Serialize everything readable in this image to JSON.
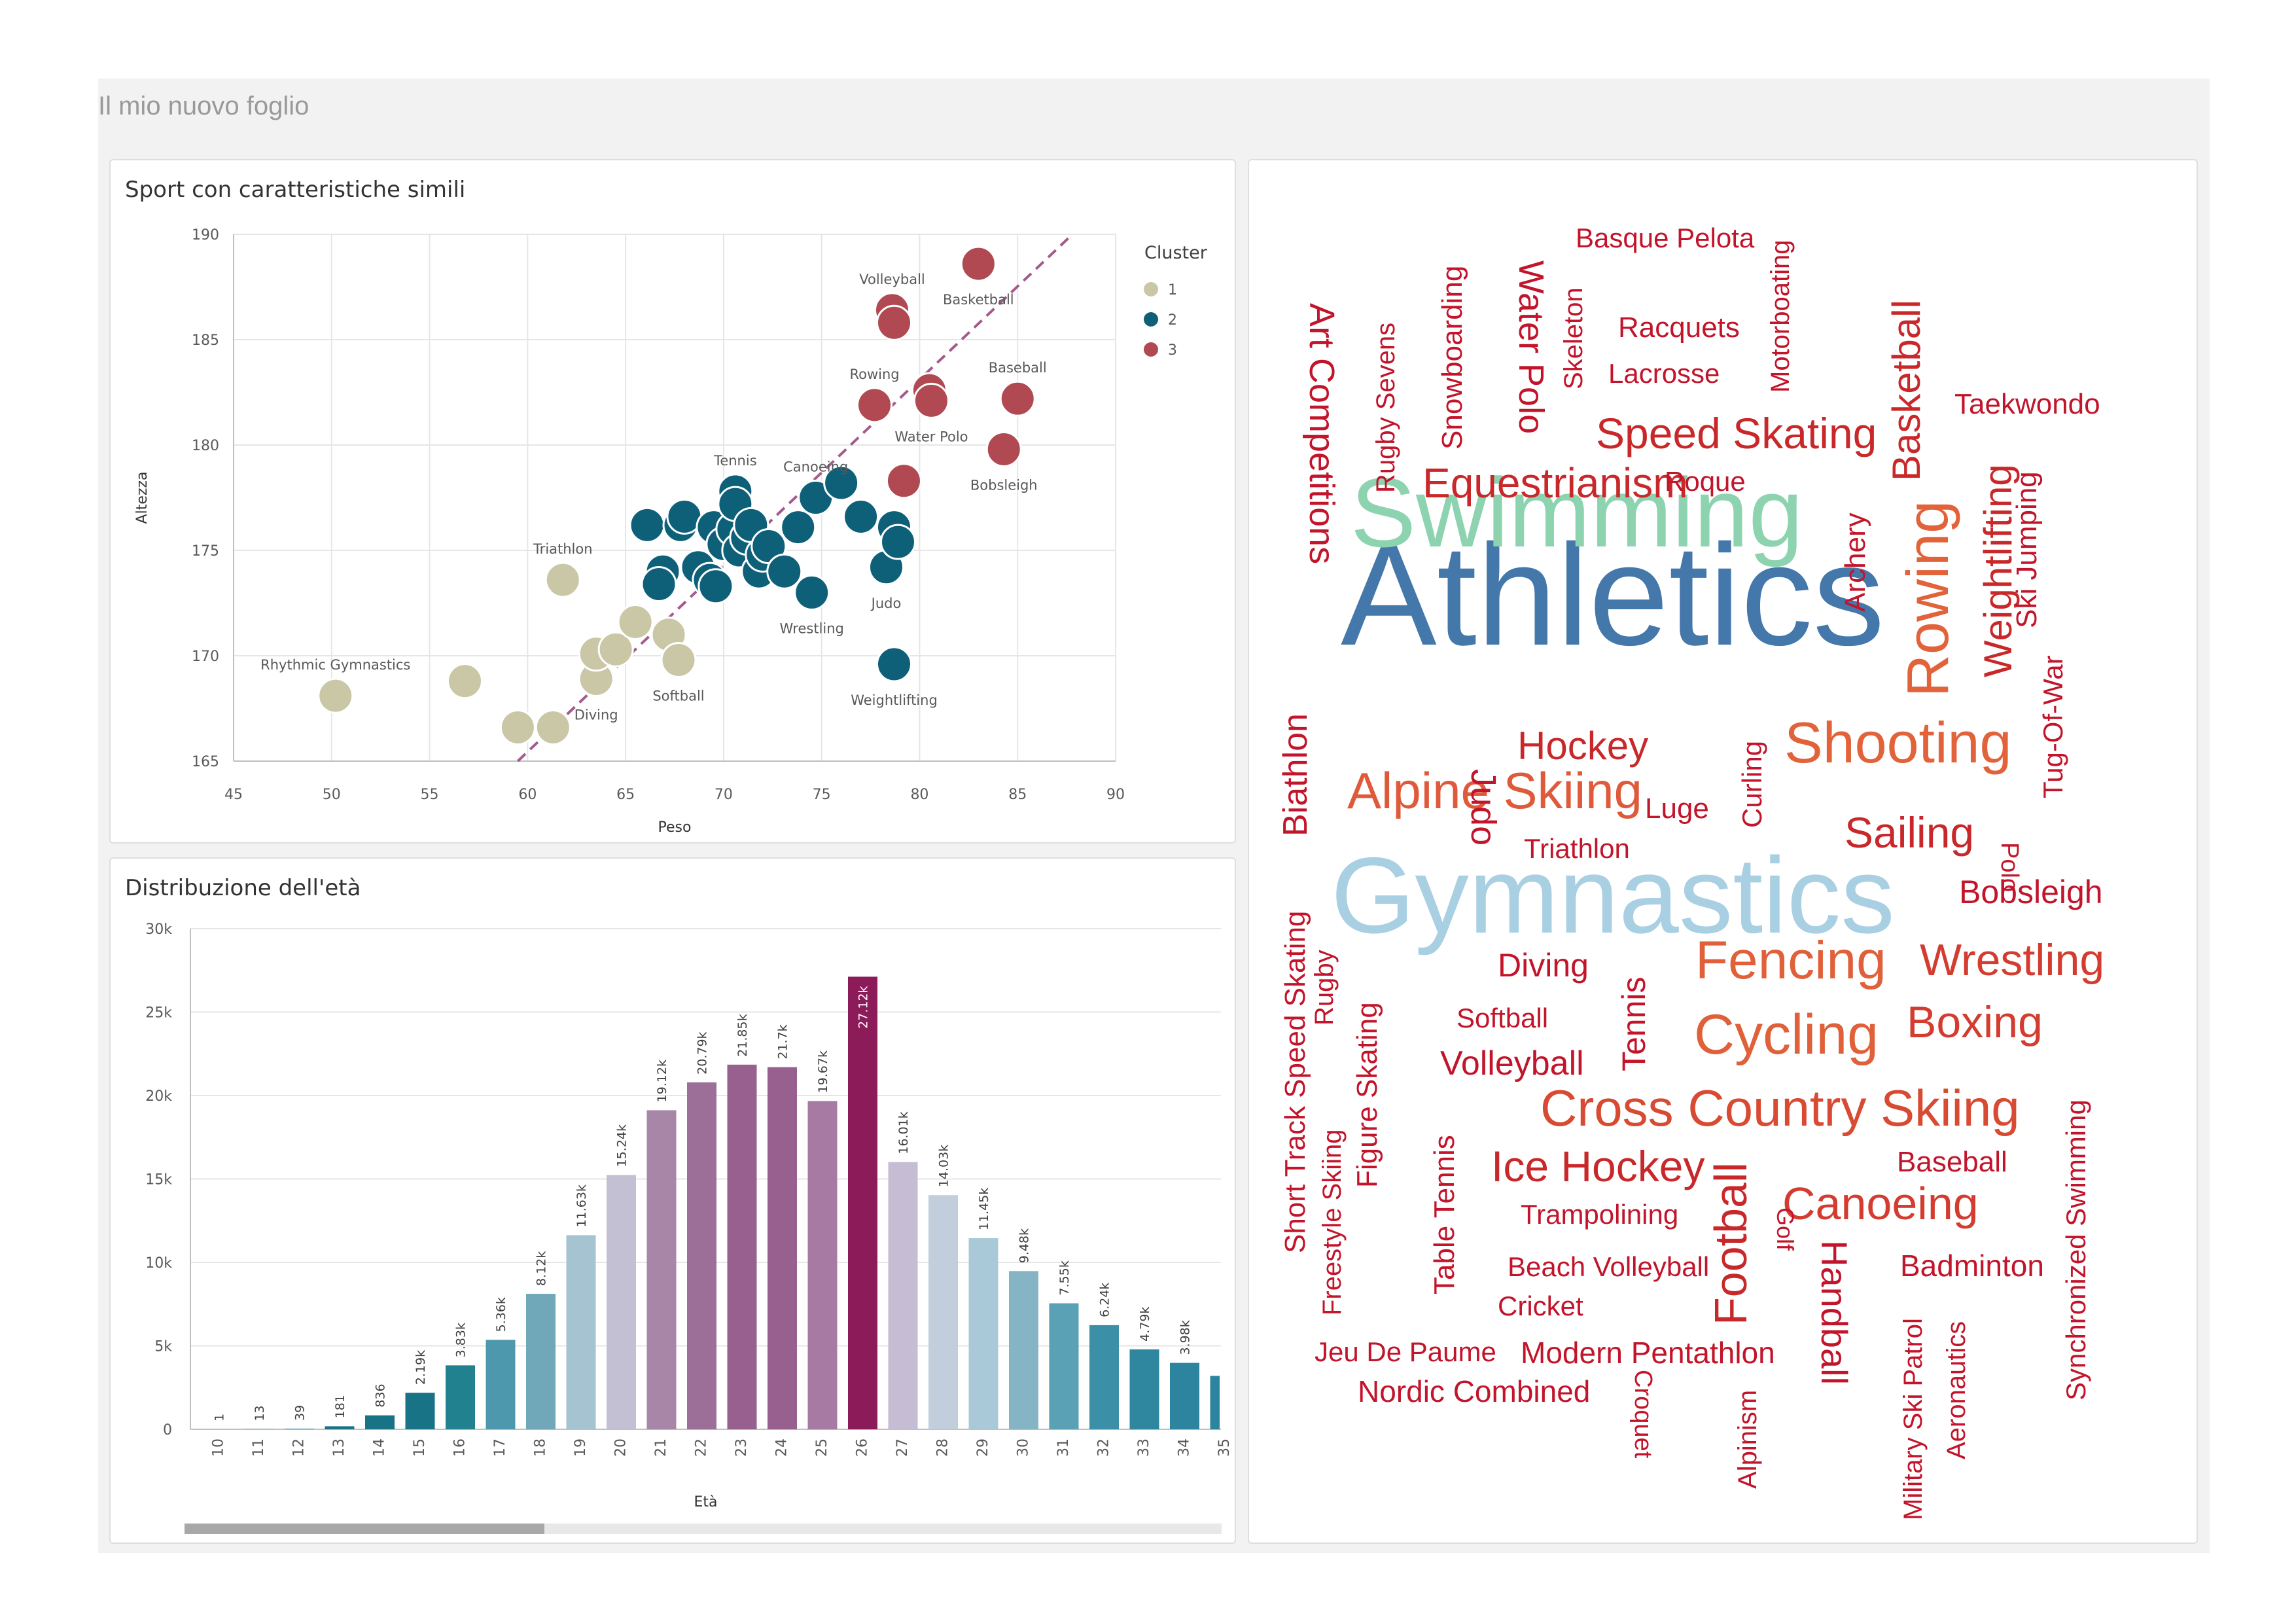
{
  "sheet": {
    "title": "Il mio nuovo foglio"
  },
  "scatter": {
    "title": "Sport con caratteristiche simili",
    "legend": {
      "title": "Cluster",
      "items": [
        {
          "label": "1",
          "color": "#c9c7a6"
        },
        {
          "label": "2",
          "color": "#0e6079"
        },
        {
          "label": "3",
          "color": "#b04951"
        }
      ]
    }
  },
  "bars": {
    "title": "Distribuzione dell'età"
  },
  "chart_data": [
    {
      "type": "scatter",
      "title": "Sport con caratteristiche simili",
      "xlabel": "Peso",
      "ylabel": "Altezza",
      "xlim": [
        45,
        90
      ],
      "ylim": [
        165,
        190
      ],
      "xticks": [
        45,
        50,
        55,
        60,
        65,
        70,
        75,
        80,
        85,
        90
      ],
      "yticks": [
        165,
        170,
        175,
        180,
        185,
        190
      ],
      "grid": true,
      "legend_position": "right",
      "trendline": {
        "from": [
          59.5,
          165
        ],
        "to": [
          87.8,
          190
        ],
        "color": "#a45a8c"
      },
      "points": [
        {
          "x": 50.2,
          "y": 168.1,
          "cluster": 1,
          "label": "Rhythmic Gymnastics"
        },
        {
          "x": 56.8,
          "y": 168.8,
          "cluster": 1
        },
        {
          "x": 59.5,
          "y": 166.6,
          "cluster": 1
        },
        {
          "x": 61.3,
          "y": 166.6,
          "cluster": 1
        },
        {
          "x": 63.5,
          "y": 168.9,
          "cluster": 1,
          "label": "Diving"
        },
        {
          "x": 63.5,
          "y": 170.1,
          "cluster": 1
        },
        {
          "x": 64.5,
          "y": 170.3,
          "cluster": 1
        },
        {
          "x": 65.5,
          "y": 171.6,
          "cluster": 1
        },
        {
          "x": 67.2,
          "y": 171.0,
          "cluster": 1
        },
        {
          "x": 67.7,
          "y": 169.8,
          "cluster": 1,
          "label": "Softball"
        },
        {
          "x": 61.8,
          "y": 173.6,
          "cluster": 1,
          "label": "Triathlon"
        },
        {
          "x": 66.1,
          "y": 176.2,
          "cluster": 2
        },
        {
          "x": 66.9,
          "y": 174.0,
          "cluster": 2
        },
        {
          "x": 66.7,
          "y": 173.4,
          "cluster": 2
        },
        {
          "x": 67.8,
          "y": 176.2,
          "cluster": 2
        },
        {
          "x": 68.0,
          "y": 176.6,
          "cluster": 2
        },
        {
          "x": 68.7,
          "y": 174.2,
          "cluster": 2
        },
        {
          "x": 69.3,
          "y": 173.6,
          "cluster": 2
        },
        {
          "x": 69.6,
          "y": 173.3,
          "cluster": 2
        },
        {
          "x": 69.5,
          "y": 176.1,
          "cluster": 2
        },
        {
          "x": 70.0,
          "y": 175.3,
          "cluster": 2
        },
        {
          "x": 70.5,
          "y": 176.0,
          "cluster": 2
        },
        {
          "x": 70.6,
          "y": 177.8,
          "cluster": 2,
          "label": "Tennis"
        },
        {
          "x": 70.6,
          "y": 177.2,
          "cluster": 2
        },
        {
          "x": 70.8,
          "y": 175.0,
          "cluster": 2
        },
        {
          "x": 71.2,
          "y": 175.6,
          "cluster": 2
        },
        {
          "x": 71.4,
          "y": 176.2,
          "cluster": 2
        },
        {
          "x": 71.8,
          "y": 174.0,
          "cluster": 2
        },
        {
          "x": 72.0,
          "y": 174.8,
          "cluster": 2
        },
        {
          "x": 72.3,
          "y": 175.2,
          "cluster": 2
        },
        {
          "x": 73.1,
          "y": 174.0,
          "cluster": 2
        },
        {
          "x": 73.8,
          "y": 176.1,
          "cluster": 2
        },
        {
          "x": 74.7,
          "y": 177.5,
          "cluster": 2,
          "label": "Canoeing"
        },
        {
          "x": 74.5,
          "y": 173.0,
          "cluster": 2,
          "label": "Wrestling"
        },
        {
          "x": 76.0,
          "y": 178.2,
          "cluster": 2
        },
        {
          "x": 77.0,
          "y": 176.6,
          "cluster": 2
        },
        {
          "x": 78.3,
          "y": 174.2,
          "cluster": 2,
          "label": "Judo"
        },
        {
          "x": 78.7,
          "y": 176.1,
          "cluster": 2
        },
        {
          "x": 78.9,
          "y": 175.4,
          "cluster": 2
        },
        {
          "x": 78.7,
          "y": 169.6,
          "cluster": 2,
          "label": "Weightlifting"
        },
        {
          "x": 78.6,
          "y": 186.4,
          "cluster": 3,
          "label": "Volleyball"
        },
        {
          "x": 78.7,
          "y": 185.8,
          "cluster": 3
        },
        {
          "x": 83.0,
          "y": 188.6,
          "cluster": 3,
          "label": "Basketball"
        },
        {
          "x": 77.7,
          "y": 181.9,
          "cluster": 3,
          "label": "Rowing"
        },
        {
          "x": 80.5,
          "y": 182.6,
          "cluster": 3
        },
        {
          "x": 80.6,
          "y": 182.1,
          "cluster": 3,
          "label": "Water Polo"
        },
        {
          "x": 85.0,
          "y": 182.2,
          "cluster": 3,
          "label": "Baseball"
        },
        {
          "x": 84.3,
          "y": 179.8,
          "cluster": 3,
          "label": "Bobsleigh"
        },
        {
          "x": 79.2,
          "y": 178.3,
          "cluster": 3
        }
      ]
    },
    {
      "type": "bar",
      "title": "Distribuzione dell'età",
      "xlabel": "Età",
      "ylabel": "",
      "ylim": [
        0,
        30000
      ],
      "yticks": [
        0,
        5000,
        10000,
        15000,
        20000,
        25000,
        30000
      ],
      "ytick_labels": [
        "0",
        "5k",
        "10k",
        "15k",
        "20k",
        "25k",
        "30k"
      ],
      "grid": true,
      "categories": [
        "10",
        "11",
        "12",
        "13",
        "14",
        "15",
        "16",
        "17",
        "18",
        "19",
        "20",
        "21",
        "22",
        "23",
        "24",
        "25",
        "26",
        "27",
        "28",
        "29",
        "30",
        "31",
        "32",
        "33",
        "34",
        "35"
      ],
      "values": [
        1,
        13,
        39,
        181,
        836,
        2190,
        3830,
        5360,
        8120,
        11630,
        15240,
        19120,
        20790,
        21850,
        21700,
        19670,
        27120,
        16010,
        14030,
        11450,
        9480,
        7550,
        6240,
        4790,
        3980,
        3200
      ],
      "data_labels": [
        "1",
        "13",
        "39",
        "181",
        "836",
        "2.19k",
        "3.83k",
        "5.36k",
        "8.12k",
        "11.63k",
        "15.24k",
        "19.12k",
        "20.79k",
        "21.85k",
        "21.7k",
        "19.67k",
        "27.12k",
        "16.01k",
        "14.03k",
        "11.45k",
        "9.48k",
        "7.55k",
        "6.24k",
        "4.79k",
        "3.98k",
        ""
      ],
      "colors": [
        "#3a8ea4",
        "#3a8ea4",
        "#3a8ea4",
        "#197387",
        "#197387",
        "#197387",
        "#22818f",
        "#4d98ad",
        "#70a8ba",
        "#a6c3d1",
        "#c3c0d4",
        "#a886a8",
        "#9c6f98",
        "#97608e",
        "#97608e",
        "#a67aa2",
        "#8c1b5a",
        "#c6bcd3",
        "#c2cedb",
        "#a9c9d8",
        "#85b4c5",
        "#5ba1b5",
        "#3b8fa6",
        "#2e869f",
        "#2c849e",
        "#2c849e"
      ]
    },
    {
      "type": "wordcloud",
      "words": [
        {
          "text": "Athletics",
          "color": "#4477aa"
        },
        {
          "text": "Swimming",
          "color": "#8dd3b0"
        },
        {
          "text": "Gymnastics",
          "color": "#a9cfe3"
        },
        {
          "text": "Rowing",
          "color": "#e2623a"
        },
        {
          "text": "Shooting",
          "color": "#e2623a"
        },
        {
          "text": "Alpine Skiing",
          "color": "#df5a3a"
        },
        {
          "text": "Fencing",
          "color": "#e0603a"
        },
        {
          "text": "Cycling",
          "color": "#e0603a"
        },
        {
          "text": "Cross Country Skiing",
          "color": "#d84a32"
        },
        {
          "text": "Wrestling",
          "color": "#d33c2f"
        },
        {
          "text": "Boxing",
          "color": "#d33c2f"
        },
        {
          "text": "Canoeing",
          "color": "#d33c2f"
        },
        {
          "text": "Speed Skating",
          "color": "#c9282a"
        },
        {
          "text": "Equestrianism",
          "color": "#c9282a"
        },
        {
          "text": "Basketball",
          "color": "#c9282a"
        },
        {
          "text": "Weightlifting",
          "color": "#c9282a"
        },
        {
          "text": "Ice Hockey",
          "color": "#c9282a"
        },
        {
          "text": "Football",
          "color": "#c9282a"
        },
        {
          "text": "Sailing",
          "color": "#c9282a"
        },
        {
          "text": "Hockey",
          "color": "#c9282a"
        },
        {
          "text": "Water Polo",
          "color": "#c2142a"
        },
        {
          "text": "Art Competitions",
          "color": "#c2142a"
        },
        {
          "text": "Biathlon",
          "color": "#c2142a"
        },
        {
          "text": "Judo",
          "color": "#c2142a"
        },
        {
          "text": "Handball",
          "color": "#c2142a"
        },
        {
          "text": "Volleyball",
          "color": "#c2142a"
        },
        {
          "text": "Diving",
          "color": "#c2142a"
        },
        {
          "text": "Bobsleigh",
          "color": "#c2142a"
        },
        {
          "text": "Modern Pentathlon",
          "color": "#c2142a"
        },
        {
          "text": "Nordic Combined",
          "color": "#c2142a"
        },
        {
          "text": "Badminton",
          "color": "#c2142a"
        },
        {
          "text": "Tennis",
          "color": "#c2142a"
        },
        {
          "text": "Taekwondo",
          "color": "#c2142a"
        },
        {
          "text": "Racquets",
          "color": "#c2142a"
        },
        {
          "text": "Lacrosse",
          "color": "#c2142a"
        },
        {
          "text": "Basque Pelota",
          "color": "#c2142a"
        },
        {
          "text": "Roque",
          "color": "#c2142a"
        },
        {
          "text": "Archery",
          "color": "#c2142a"
        },
        {
          "text": "Luge",
          "color": "#c2142a"
        },
        {
          "text": "Triathlon",
          "color": "#c2142a"
        },
        {
          "text": "Softball",
          "color": "#c2142a"
        },
        {
          "text": "Trampolining",
          "color": "#c2142a"
        },
        {
          "text": "Beach Volleyball",
          "color": "#c2142a"
        },
        {
          "text": "Cricket",
          "color": "#c2142a"
        },
        {
          "text": "Jeu De Paume",
          "color": "#c2142a"
        },
        {
          "text": "Baseball",
          "color": "#c2142a"
        },
        {
          "text": "Ski Jumping",
          "color": "#c2142a"
        },
        {
          "text": "Tug-Of-War",
          "color": "#c2142a"
        },
        {
          "text": "Polo",
          "color": "#c2142a"
        },
        {
          "text": "Curling",
          "color": "#c2142a"
        },
        {
          "text": "Rugby Sevens",
          "color": "#c2142a"
        },
        {
          "text": "Snowboarding",
          "color": "#c2142a"
        },
        {
          "text": "Skeleton",
          "color": "#c2142a"
        },
        {
          "text": "Motorboating",
          "color": "#c2142a"
        },
        {
          "text": "Short Track Speed Skating",
          "color": "#c2142a"
        },
        {
          "text": "Rugby",
          "color": "#c2142a"
        },
        {
          "text": "Figure Skating",
          "color": "#c2142a"
        },
        {
          "text": "Freestyle Skiing",
          "color": "#c2142a"
        },
        {
          "text": "Table Tennis",
          "color": "#c2142a"
        },
        {
          "text": "Golf",
          "color": "#c2142a"
        },
        {
          "text": "Synchronized Swimming",
          "color": "#c2142a"
        },
        {
          "text": "Croquet",
          "color": "#c2142a"
        },
        {
          "text": "Alpinism",
          "color": "#c2142a"
        },
        {
          "text": "Military Ski Patrol",
          "color": "#c2142a"
        },
        {
          "text": "Aeronautics",
          "color": "#c2142a"
        }
      ]
    }
  ]
}
